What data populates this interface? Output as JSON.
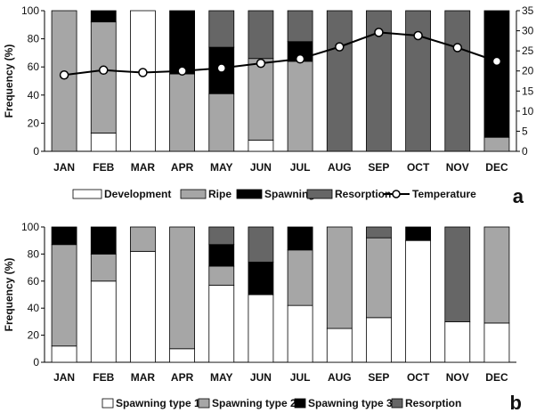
{
  "chart_data": [
    {
      "type": "bar",
      "stacked": true,
      "panel_label": "a",
      "categories": [
        "JAN",
        "FEB",
        "MAR",
        "APR",
        "MAY",
        "JUN",
        "JUL",
        "AUG",
        "SEP",
        "OCT",
        "NOV",
        "DEC"
      ],
      "ylabel": "Frequency (%)",
      "ylim": [
        0,
        100
      ],
      "yticks": [
        0,
        20,
        40,
        60,
        80,
        100
      ],
      "y2lim": [
        0,
        35
      ],
      "y2ticks": [
        0,
        5,
        10,
        15,
        20,
        25,
        30,
        35
      ],
      "grid": false,
      "legend_position": "bottom",
      "series": [
        {
          "name": "Development",
          "color": "#ffffff",
          "values": [
            0,
            13,
            100,
            0,
            0,
            8,
            0,
            0,
            0,
            0,
            0,
            0
          ]
        },
        {
          "name": "Ripe",
          "color": "#a6a6a6",
          "values": [
            100,
            79,
            0,
            55,
            41,
            58,
            64,
            0,
            0,
            0,
            0,
            10
          ]
        },
        {
          "name": "Spawning",
          "color": "#000000",
          "values": [
            0,
            8,
            0,
            45,
            33,
            0,
            14,
            0,
            0,
            0,
            0,
            90
          ]
        },
        {
          "name": "Resorption",
          "color": "#666666",
          "values": [
            0,
            0,
            0,
            0,
            26,
            34,
            22,
            100,
            100,
            100,
            100,
            0
          ]
        }
      ],
      "line": {
        "name": "Temperature",
        "axis": "right",
        "values": [
          19.0,
          20.2,
          19.6,
          20.0,
          20.7,
          21.9,
          23.0,
          26.0,
          29.6,
          28.8,
          25.8,
          22.4
        ]
      }
    },
    {
      "type": "bar",
      "stacked": true,
      "panel_label": "b",
      "categories": [
        "JAN",
        "FEB",
        "MAR",
        "APR",
        "MAY",
        "JUN",
        "JUL",
        "AUG",
        "SEP",
        "OCT",
        "NOV",
        "DEC"
      ],
      "ylabel": "Frequency (%)",
      "ylim": [
        0,
        100
      ],
      "yticks": [
        0,
        20,
        40,
        60,
        80,
        100
      ],
      "grid": false,
      "legend_position": "bottom",
      "series": [
        {
          "name": "Spawning type 1",
          "color": "#ffffff",
          "values": [
            12,
            60,
            82,
            10,
            57,
            50,
            42,
            25,
            33,
            90,
            30,
            29
          ]
        },
        {
          "name": "Spawning type 2",
          "color": "#a6a6a6",
          "values": [
            75,
            20,
            18,
            90,
            14,
            0,
            41,
            75,
            59,
            0,
            0,
            71
          ]
        },
        {
          "name": "Spawning type 3",
          "color": "#000000",
          "values": [
            13,
            20,
            0,
            0,
            16,
            24,
            17,
            0,
            0,
            10,
            0,
            0
          ]
        },
        {
          "name": "Resorption",
          "color": "#666666",
          "values": [
            0,
            0,
            0,
            0,
            13,
            26,
            0,
            0,
            8,
            0,
            70,
            0
          ]
        }
      ]
    }
  ]
}
